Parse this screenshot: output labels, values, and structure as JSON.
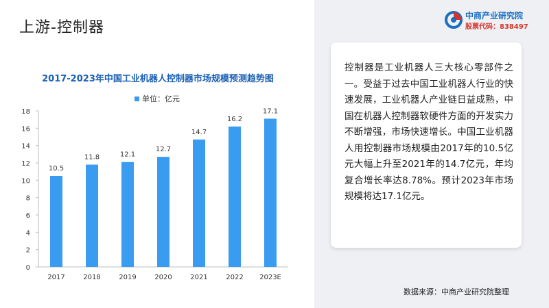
{
  "page": {
    "title": "上游-控制器"
  },
  "logo": {
    "name": "中商产业研究院",
    "stock_code": "股票代码：838497",
    "icon": "company-logo-icon"
  },
  "chart_data": {
    "type": "bar",
    "title": "2017-2023年中国工业机器人控制器市场规模预测趋势图",
    "legend": "单位：亿元",
    "categories": [
      "2017",
      "2018",
      "2019",
      "2020",
      "2021",
      "2022",
      "2023E"
    ],
    "values": [
      10.5,
      11.8,
      12.1,
      12.7,
      14.7,
      16.2,
      17.1
    ],
    "value_labels": [
      "10.5",
      "11.8",
      "12.1",
      "12.7",
      "14.7",
      "16.2",
      "17.1"
    ],
    "ylim": [
      0,
      18
    ],
    "yticks": [
      "0",
      "2",
      "4",
      "6",
      "8",
      "10",
      "12",
      "14",
      "16",
      "18"
    ],
    "color": "#3a9cf0",
    "grid": false
  },
  "text_card": {
    "body": "控制器是工业机器人三大核心零部件之一。受益于过去中国工业机器人行业的快速发展，工业机器人产业链日益成熟，中国在机器人控制器软硬件方面的开发实力不断增强，市场快速增长。中国工业机器人用控制器市场规模由2017年的10.5亿元大幅上升至2021年的14.7亿元，年均复合增长率达8.78%。预计2023年市场规模将达17.1亿元。"
  },
  "source": "数据来源：中商产业研究院整理"
}
